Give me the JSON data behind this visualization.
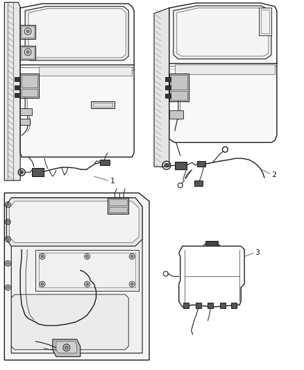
{
  "bg_color": "#ffffff",
  "line_color": "#1a1a1a",
  "gray_line": "#555555",
  "light_line": "#888888",
  "label_1": "1",
  "label_2": "2",
  "label_3": "3",
  "fig_width": 4.38,
  "fig_height": 5.33,
  "dpi": 100
}
